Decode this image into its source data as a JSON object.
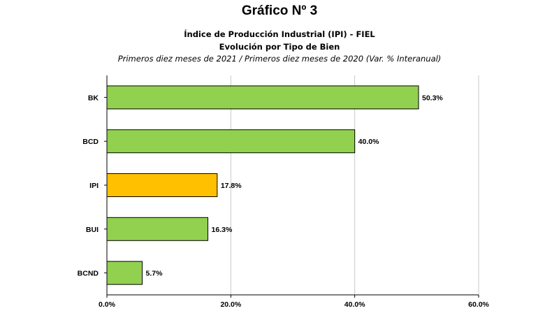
{
  "header": {
    "figure_label": "Gráfico Nº 3"
  },
  "chart_data": {
    "type": "bar",
    "orientation": "horizontal",
    "title": "Índice de Producción Industrial (IPI) - FIEL",
    "subtitle": "Evolución por Tipo de Bien",
    "note": "Primeros diez meses de 2021 / Primeros diez meses de 2020 (Var. % Interanual)",
    "categories": [
      "BK",
      "BCD",
      "IPI",
      "BUI",
      "BCND"
    ],
    "values": [
      50.3,
      40.0,
      17.8,
      16.3,
      5.7
    ],
    "data_labels": [
      "50.3%",
      "40.0%",
      "17.8%",
      "16.3%",
      "5.7%"
    ],
    "bar_colors": [
      "#92d050",
      "#92d050",
      "#ffc000",
      "#92d050",
      "#92d050"
    ],
    "xlim": [
      0,
      60
    ],
    "x_ticks": [
      0,
      20,
      40,
      60
    ],
    "x_tick_labels": [
      "0.0%",
      "20.0%",
      "40.0%",
      "60.0%"
    ],
    "grid": "vertical-major",
    "legend": "none",
    "colors": {
      "bar_default": "#92d050",
      "bar_highlight": "#ffc000",
      "grid": "#c8c8c8"
    }
  }
}
